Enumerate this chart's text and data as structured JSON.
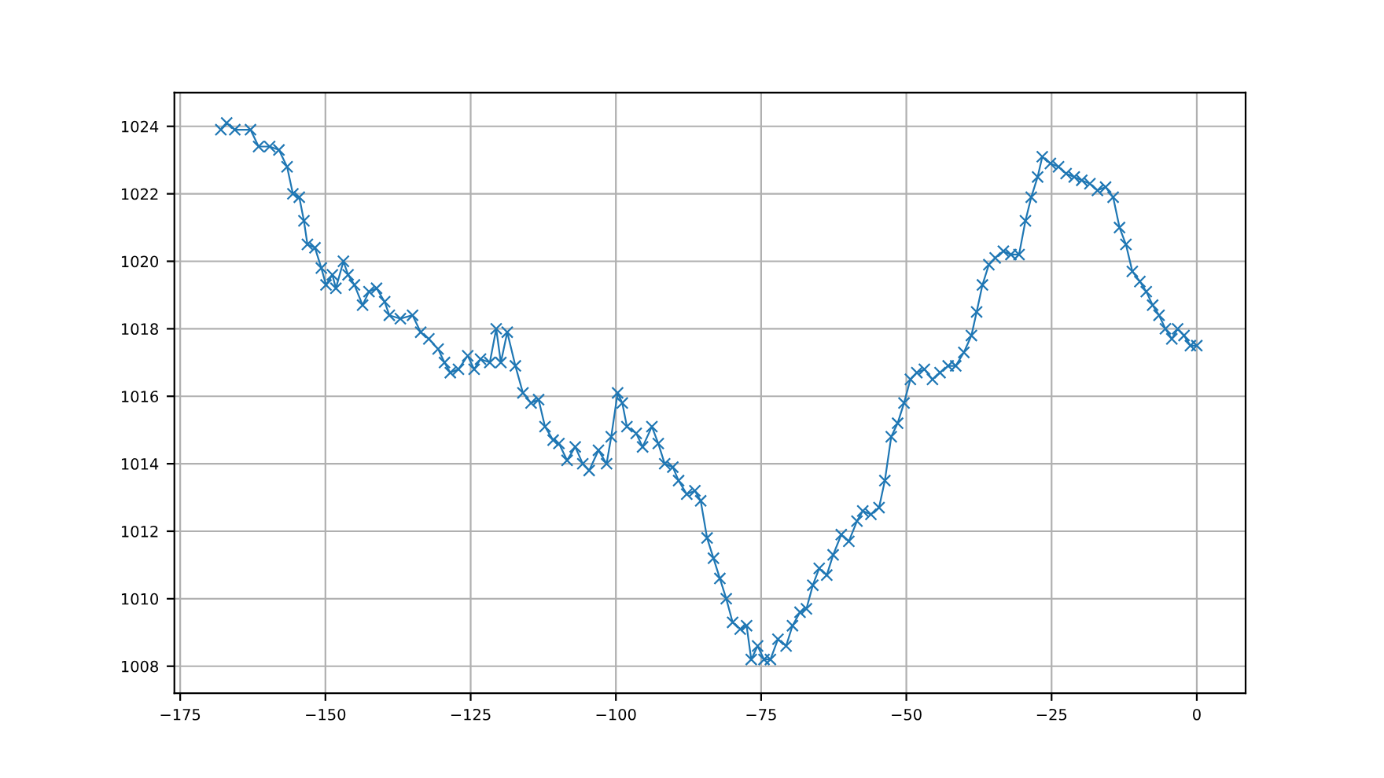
{
  "chart_data": {
    "type": "line",
    "marker": "cross",
    "line_style": "solid",
    "grid": true,
    "x": [
      -168,
      -167,
      -165.6,
      -162.9,
      -161.5,
      -159.6,
      -158,
      -156.6,
      -155.6,
      -154.5,
      -153.7,
      -153.1,
      -151.8,
      -150.7,
      -149.9,
      -148.8,
      -148.2,
      -146.9,
      -146.1,
      -145,
      -143.6,
      -142.5,
      -141.2,
      -139.8,
      -139,
      -137.1,
      -135,
      -133.6,
      -132.2,
      -130.6,
      -129.5,
      -128.5,
      -127.1,
      -125.5,
      -124.4,
      -123.3,
      -121.7,
      -120.6,
      -119.8,
      -118.7,
      -117.3,
      -116,
      -114.6,
      -113.3,
      -112.2,
      -110.8,
      -109.8,
      -108.4,
      -107,
      -105.7,
      -104.6,
      -103,
      -101.6,
      -100.8,
      -99.7,
      -98.9,
      -98.1,
      -96.5,
      -95.4,
      -93.8,
      -92.7,
      -91.6,
      -90.2,
      -89.2,
      -87.8,
      -86.4,
      -85.4,
      -84.3,
      -83.2,
      -82.1,
      -81,
      -79.9,
      -78.6,
      -77.5,
      -76.7,
      -75.6,
      -74.5,
      -73.4,
      -72.1,
      -70.7,
      -69.6,
      -68.3,
      -67.2,
      -66.1,
      -65,
      -63.7,
      -62.6,
      -61.2,
      -59.9,
      -58.5,
      -57.5,
      -56.1,
      -54.7,
      -53.7,
      -52.6,
      -51.5,
      -50.4,
      -49.3,
      -48.2,
      -46.9,
      -45.5,
      -44.2,
      -42.8,
      -41.5,
      -40.1,
      -38.8,
      -37.9,
      -36.9,
      -35.8,
      -34.7,
      -33.3,
      -32,
      -30.6,
      -29.5,
      -28.5,
      -27.4,
      -26.6,
      -25.2,
      -23.8,
      -22.5,
      -21.1,
      -19.8,
      -18.4,
      -17.1,
      -15.7,
      -14.4,
      -13.3,
      -12.2,
      -11.1,
      -9.8,
      -8.7,
      -7.6,
      -6.5,
      -5.4,
      -4.3,
      -3.3,
      -2.2,
      -1.1,
      0
    ],
    "series": [
      {
        "color": "#1f77b4",
        "values": [
          1023.9,
          1024.1,
          1023.9,
          1023.9,
          1023.4,
          1023.4,
          1023.3,
          1022.8,
          1022.0,
          1021.9,
          1021.2,
          1020.5,
          1020.4,
          1019.8,
          1019.3,
          1019.6,
          1019.2,
          1020.0,
          1019.6,
          1019.3,
          1018.7,
          1019.1,
          1019.2,
          1018.8,
          1018.4,
          1018.3,
          1018.4,
          1017.9,
          1017.7,
          1017.4,
          1017.0,
          1016.7,
          1016.8,
          1017.2,
          1016.8,
          1017.1,
          1017.0,
          1018.0,
          1017.0,
          1017.9,
          1016.9,
          1016.1,
          1015.8,
          1015.9,
          1015.1,
          1014.7,
          1014.6,
          1014.1,
          1014.5,
          1014.0,
          1013.8,
          1014.4,
          1014.0,
          1014.8,
          1016.1,
          1015.8,
          1015.1,
          1014.9,
          1014.5,
          1015.1,
          1014.6,
          1014.0,
          1013.9,
          1013.5,
          1013.1,
          1013.2,
          1012.9,
          1011.8,
          1011.2,
          1010.6,
          1010.0,
          1009.3,
          1009.1,
          1009.2,
          1008.2,
          1008.6,
          1008.2,
          1008.2,
          1008.8,
          1008.6,
          1009.2,
          1009.6,
          1009.7,
          1010.4,
          1010.9,
          1010.7,
          1011.3,
          1011.9,
          1011.7,
          1012.3,
          1012.6,
          1012.5,
          1012.7,
          1013.5,
          1014.8,
          1015.2,
          1015.8,
          1016.5,
          1016.7,
          1016.8,
          1016.5,
          1016.7,
          1016.9,
          1016.9,
          1017.3,
          1017.8,
          1018.5,
          1019.3,
          1019.9,
          1020.1,
          1020.3,
          1020.2,
          1020.2,
          1021.2,
          1021.9,
          1022.5,
          1023.1,
          1022.9,
          1022.8,
          1022.6,
          1022.5,
          1022.4,
          1022.3,
          1022.1,
          1022.2,
          1021.9,
          1021.0,
          1020.5,
          1019.7,
          1019.4,
          1019.1,
          1018.7,
          1018.4,
          1018.0,
          1017.7,
          1018.0,
          1017.8,
          1017.5,
          1017.5
        ]
      }
    ],
    "xlim": [
      -176,
      8.4
    ],
    "ylim": [
      1007.2,
      1025.0
    ],
    "xticks": [
      {
        "value": -175,
        "label": "−175"
      },
      {
        "value": -150,
        "label": "−150"
      },
      {
        "value": -125,
        "label": "−125"
      },
      {
        "value": -100,
        "label": "−100"
      },
      {
        "value": -75,
        "label": "−75"
      },
      {
        "value": -50,
        "label": "−50"
      },
      {
        "value": -25,
        "label": "−25"
      },
      0
    ],
    "yticks": [
      1008,
      1010,
      1012,
      1014,
      1016,
      1018,
      1020,
      1022,
      1024
    ]
  }
}
